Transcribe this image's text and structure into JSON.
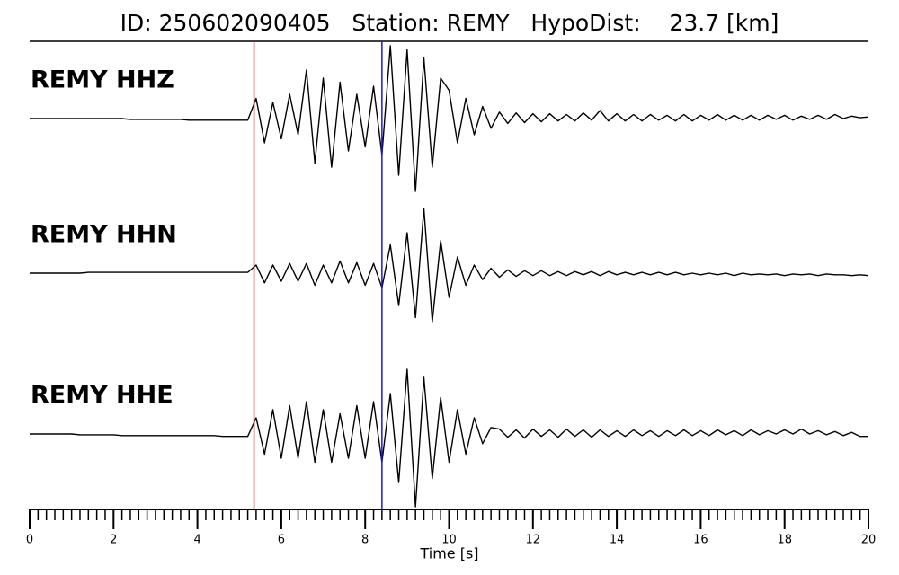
{
  "chart_data": {
    "type": "seismogram",
    "title": "ID: 250602090405   Station: REMY   HypoDist:    23.7 [km]",
    "x_label": "Time [s]",
    "xlim": [
      0,
      20
    ],
    "xticks": [
      0,
      2,
      4,
      6,
      8,
      10,
      12,
      14,
      16,
      18,
      20
    ],
    "minor_tick_step": 0.2,
    "ylim": [
      -1,
      1
    ],
    "p_pick": 5.35,
    "p_color": "#e8231c",
    "s_pick": 8.4,
    "s_color": "#1a1ad0",
    "label_color": "#4a9a0a",
    "trace_color": "#000000",
    "x": [
      0,
      0.2,
      0.4,
      0.6,
      0.8,
      1,
      1.2,
      1.4,
      1.6,
      1.8,
      2,
      2.2,
      2.4,
      2.6,
      2.8,
      3,
      3.2,
      3.4,
      3.6,
      3.8,
      4,
      4.2,
      4.4,
      4.6,
      4.8,
      5,
      5.2,
      5.4,
      5.6,
      5.8,
      6,
      6.2,
      6.4,
      6.6,
      6.8,
      7,
      7.2,
      7.4,
      7.6,
      7.8,
      8,
      8.2,
      8.4,
      8.6,
      8.8,
      9,
      9.2,
      9.4,
      9.6,
      9.8,
      10,
      10.2,
      10.4,
      10.6,
      10.8,
      11,
      11.2,
      11.4,
      11.6,
      11.8,
      12,
      12.2,
      12.4,
      12.6,
      12.8,
      13,
      13.2,
      13.4,
      13.6,
      13.8,
      14,
      14.2,
      14.4,
      14.6,
      14.8,
      15,
      15.2,
      15.4,
      15.6,
      15.8,
      16,
      16.2,
      16.4,
      16.6,
      16.8,
      17,
      17.2,
      17.4,
      17.6,
      17.8,
      18,
      18.2,
      18.4,
      18.6,
      18.8,
      19,
      19.2,
      19.4,
      19.6,
      19.8,
      20
    ],
    "series": [
      {
        "name": "REMY HHZ",
        "values": [
          0,
          0,
          0,
          0,
          0,
          0,
          0,
          0,
          0,
          0,
          0,
          0,
          -0.01,
          -0.01,
          -0.01,
          -0.01,
          -0.01,
          -0.01,
          -0.01,
          -0.02,
          -0.02,
          -0.02,
          -0.02,
          -0.02,
          -0.02,
          -0.02,
          -0.02,
          0.25,
          -0.3,
          0.2,
          -0.25,
          0.3,
          -0.2,
          0.6,
          -0.55,
          0.5,
          -0.6,
          0.45,
          -0.4,
          0.3,
          -0.35,
          0.4,
          -0.45,
          0.9,
          -0.7,
          0.85,
          -0.9,
          0.75,
          -0.6,
          0.5,
          0.35,
          -0.3,
          0.25,
          -0.2,
          0.15,
          -0.12,
          0.08,
          -0.06,
          0.07,
          -0.05,
          0.06,
          -0.04,
          0.06,
          -0.03,
          0.05,
          -0.03,
          0.07,
          -0.02,
          0.1,
          -0.03,
          0.06,
          -0.03,
          0.05,
          -0.03,
          0.05,
          -0.02,
          0.04,
          -0.03,
          0.05,
          -0.03,
          0.04,
          -0.02,
          0.05,
          -0.02,
          0.04,
          -0.02,
          0.04,
          -0.02,
          0.04,
          -0.01,
          0.04,
          -0.02,
          0.03,
          -0.01,
          0.04,
          -0.01,
          0.05,
          0,
          0.03,
          0.01,
          0.02
        ]
      },
      {
        "name": "REMY HHN",
        "values": [
          0,
          0,
          0,
          0,
          0,
          0,
          0,
          0.01,
          0.01,
          0.01,
          0.01,
          0.01,
          0.01,
          0.01,
          0.01,
          0.01,
          0.01,
          0.01,
          0.01,
          0.01,
          0.01,
          0.01,
          0.01,
          0.01,
          0.01,
          0.01,
          0.01,
          0.1,
          -0.12,
          0.1,
          -0.1,
          0.12,
          -0.1,
          0.12,
          -0.15,
          0.1,
          -0.12,
          0.15,
          -0.12,
          0.13,
          -0.15,
          0.12,
          -0.18,
          0.35,
          -0.4,
          0.5,
          -0.55,
          0.8,
          -0.6,
          0.4,
          -0.3,
          0.2,
          -0.15,
          0.1,
          -0.08,
          0.06,
          -0.05,
          0.04,
          -0.04,
          0.03,
          -0.03,
          0.03,
          -0.03,
          0.02,
          -0.03,
          0.02,
          -0.02,
          0.02,
          -0.03,
          0.02,
          -0.02,
          0.01,
          -0.02,
          0.01,
          -0.02,
          0.01,
          -0.02,
          0.01,
          -0.02,
          0,
          -0.02,
          0,
          -0.02,
          0,
          -0.03,
          0,
          -0.02,
          -0.01,
          -0.02,
          -0.01,
          -0.03,
          -0.01,
          -0.02,
          -0.01,
          -0.03,
          -0.01,
          -0.02,
          -0.02,
          -0.03,
          -0.02,
          -0.03
        ]
      },
      {
        "name": "REMY HHE",
        "values": [
          0,
          0,
          0,
          0,
          0,
          0,
          -0.01,
          -0.01,
          -0.01,
          -0.01,
          -0.01,
          -0.02,
          -0.02,
          -0.02,
          -0.02,
          -0.02,
          -0.02,
          -0.02,
          -0.02,
          -0.02,
          -0.02,
          -0.02,
          -0.02,
          -0.03,
          -0.03,
          -0.03,
          -0.03,
          0.2,
          -0.25,
          0.3,
          -0.3,
          0.35,
          -0.3,
          0.4,
          -0.35,
          0.3,
          -0.35,
          0.25,
          -0.3,
          0.35,
          -0.3,
          0.4,
          -0.35,
          0.5,
          -0.6,
          0.8,
          -0.9,
          0.7,
          -0.55,
          0.45,
          -0.35,
          0.3,
          -0.25,
          0.2,
          -0.12,
          0.08,
          0.06,
          -0.04,
          0.05,
          -0.05,
          0.06,
          -0.03,
          0.05,
          -0.04,
          0.06,
          -0.03,
          0.05,
          -0.04,
          0.05,
          -0.03,
          0.04,
          -0.03,
          0.05,
          -0.02,
          0.04,
          -0.03,
          0.04,
          -0.02,
          0.05,
          -0.02,
          0.04,
          -0.02,
          0.05,
          -0.01,
          0.04,
          -0.02,
          0.05,
          -0.01,
          0.04,
          0,
          0.05,
          0,
          0.06,
          0,
          0.04,
          -0.01,
          0.03,
          -0.02,
          0.02,
          -0.03,
          -0.03
        ]
      }
    ]
  }
}
